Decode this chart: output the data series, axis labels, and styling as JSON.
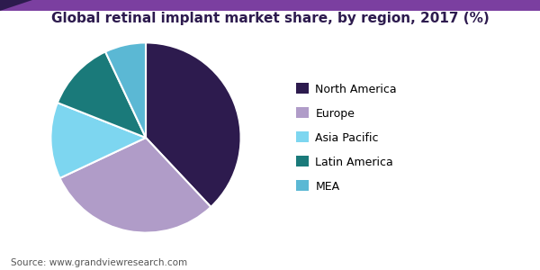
{
  "title": "Global retinal implant market share, by region, 2017 (%)",
  "labels": [
    "North America",
    "Europe",
    "Asia Pacific",
    "Latin America",
    "MEA"
  ],
  "sizes": [
    38,
    30,
    13,
    12,
    7
  ],
  "colors": [
    "#2d1b4e",
    "#b09cc8",
    "#7dd6f0",
    "#1a7a7a",
    "#5bb8d4"
  ],
  "legend_labels": [
    "North America",
    "Europe",
    "Asia Pacific",
    "Latin America",
    "MEA"
  ],
  "source_text": "Source: www.grandviewresearch.com",
  "title_fontsize": 11,
  "legend_fontsize": 9,
  "source_fontsize": 7.5,
  "background_color": "#ffffff",
  "startangle": 90,
  "wedge_edge_color": "#ffffff",
  "header_line_color": "#7b3fa0",
  "header_triangle_color": "#2d1b4e"
}
